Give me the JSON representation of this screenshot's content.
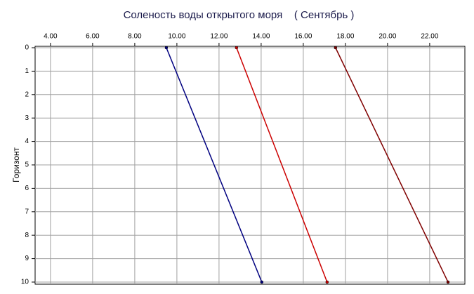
{
  "chart_data": {
    "type": "line",
    "title": "Соленость воды открытого моря    ( Сентябрь )",
    "ylabel": "Горизонт",
    "x_axis_position": "top",
    "y_inverted": true,
    "grid": true,
    "xlim": [
      3.27,
      23.67
    ],
    "xticks": [
      {
        "value": 4,
        "label": "4.00"
      },
      {
        "value": 6,
        "label": "6.00"
      },
      {
        "value": 8,
        "label": "8.00"
      },
      {
        "value": 10,
        "label": "10.00"
      },
      {
        "value": 12,
        "label": "12.00"
      },
      {
        "value": 14,
        "label": "14.00"
      },
      {
        "value": 16,
        "label": "16.00"
      },
      {
        "value": 18,
        "label": "18.00"
      },
      {
        "value": 20,
        "label": "20.00"
      },
      {
        "value": 22,
        "label": "22.00"
      }
    ],
    "ylim": [
      -0.06,
      10.09
    ],
    "yticks": [
      0,
      1,
      2,
      3,
      4,
      5,
      6,
      7,
      8,
      9,
      10
    ],
    "series": [
      {
        "color": "#000080",
        "x": [
          9.5,
          14.03
        ],
        "values": [
          0,
          10
        ]
      },
      {
        "color": "#cc0000",
        "x": [
          12.83,
          17.13
        ],
        "values": [
          0,
          10
        ]
      },
      {
        "color": "#800000",
        "x": [
          17.53,
          22.87
        ],
        "values": [
          0,
          10
        ]
      }
    ]
  }
}
